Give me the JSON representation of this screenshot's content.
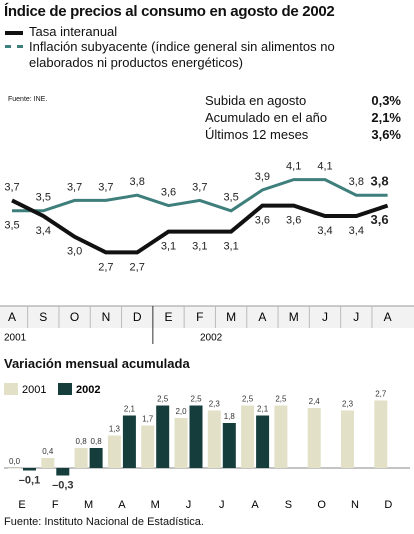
{
  "chart_data": [
    {
      "type": "line",
      "title": "Índice de precios al consumo en agosto de 2002",
      "source": "Fuente: INE.",
      "stats": [
        {
          "label": "Subida en agosto",
          "value": "0,3%"
        },
        {
          "label": "Acumulado en el año",
          "value": "2,1%"
        },
        {
          "label": "Últimos 12 meses",
          "value": "3,6%"
        }
      ],
      "categories": [
        "A",
        "S",
        "O",
        "N",
        "D",
        "E",
        "F",
        "M",
        "A",
        "M",
        "J",
        "J",
        "A"
      ],
      "years": [
        "2001",
        "2002"
      ],
      "series": [
        {
          "name": "Tasa interanual",
          "color": "#111111",
          "values": [
            3.7,
            3.4,
            3.0,
            2.7,
            2.7,
            3.1,
            3.1,
            3.1,
            3.6,
            3.6,
            3.4,
            3.4,
            3.6
          ],
          "value_labels": [
            "3,7",
            "3,4",
            "3,0",
            "2,7",
            "2,7",
            "3,1",
            "3,1",
            "3,1",
            "3,6",
            "3,6",
            "3,4",
            "3,4",
            "3,6"
          ]
        },
        {
          "name": "Inflación subyacente (índice general sin alimentos no elaborados ni productos energéticos)",
          "color": "#3e7f7c",
          "values": [
            3.5,
            3.5,
            3.7,
            3.7,
            3.8,
            3.6,
            3.7,
            3.5,
            3.9,
            4.1,
            4.1,
            3.8,
            3.8
          ],
          "value_labels": [
            "3,5",
            "3,5",
            "3,7",
            "3,7",
            "3,8",
            "3,6",
            "3,7",
            "3,5",
            "3,9",
            "4,1",
            "4,1",
            "3,8",
            "3,8"
          ]
        }
      ],
      "ylim": [
        2.4,
        4.4
      ]
    },
    {
      "type": "bar",
      "title": "Variación mensual acumulada",
      "source": "Fuente: Instituto Nacional de Estadística.",
      "categories": [
        "E",
        "F",
        "M",
        "A",
        "M",
        "J",
        "J",
        "A",
        "S",
        "O",
        "N",
        "D"
      ],
      "series": [
        {
          "name": "2001",
          "color": "#e2e0c6",
          "values": [
            0.0,
            0.4,
            0.8,
            1.3,
            1.7,
            2.0,
            2.3,
            2.5,
            2.5,
            2.4,
            2.3,
            2.7
          ],
          "value_labels": [
            "0,0",
            "0,4",
            "0,8",
            "1,3",
            "1,7",
            "2,0",
            "2,3",
            "2,5",
            "2,5",
            "2,4",
            "2,3",
            "2,7"
          ]
        },
        {
          "name": "2002",
          "color": "#143d3b",
          "values": [
            -0.1,
            -0.3,
            0.8,
            2.1,
            2.5,
            2.5,
            1.8,
            2.1,
            null,
            null,
            null,
            null
          ],
          "value_labels": [
            "–0,1",
            "–0,3",
            "0,8",
            "2,1",
            "2,5",
            "2,5",
            "1,8",
            "2,1",
            null,
            null,
            null,
            null
          ]
        }
      ],
      "ylim": [
        -0.5,
        3.0
      ]
    }
  ]
}
